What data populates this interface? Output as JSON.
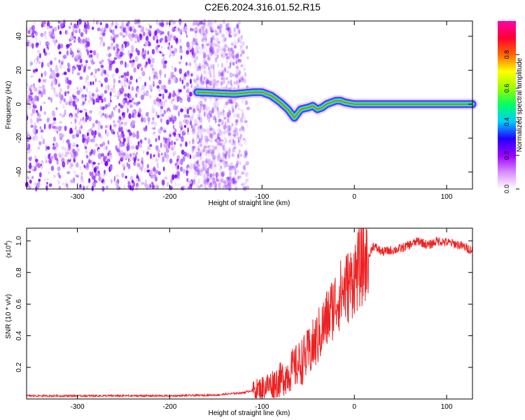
{
  "figure_title": "C2E6.2024.316.01.52.R15",
  "chart_data": [
    {
      "type": "heatmap",
      "title": "C2E6.2024.316.01.52.R15",
      "xlabel": "Height of straight line (km)",
      "ylabel": "Frequency (Hz)",
      "xlim": [
        -355,
        128
      ],
      "ylim": [
        -50,
        49
      ],
      "x_ticks": [
        -300,
        -200,
        -100,
        0,
        100
      ],
      "y_ticks": [
        -40,
        -20,
        0,
        20,
        40
      ],
      "grid": false,
      "colorbar": {
        "label": "Normalized spectral amplitude",
        "range": [
          0,
          1
        ],
        "ticks": [
          "0.0",
          "0.2",
          "0.4",
          "0.6",
          "0.8"
        ],
        "colors": [
          "#ffffff",
          "#d98cff",
          "#9900ff",
          "#2200ff",
          "#00ccff",
          "#00ff66",
          "#99ff00",
          "#ffff00",
          "#ff6600",
          "#ff0033",
          "#ff00aa"
        ]
      },
      "noise_region_x": [
        -355,
        -125
      ],
      "signal_ridge": {
        "x": [
          -170,
          -150,
          -130,
          -110,
          -100,
          -90,
          -80,
          -72,
          -65,
          -58,
          -50,
          -45,
          -40,
          -35,
          -30,
          -25,
          -20,
          -15,
          -10,
          0,
          20,
          50,
          80,
          100,
          128
        ],
        "y": [
          7,
          6.5,
          6,
          7,
          7,
          5,
          1,
          -3,
          -8,
          -3,
          -2,
          -1,
          -3,
          -2,
          0,
          1,
          2,
          2,
          1,
          0,
          0,
          0,
          0,
          0,
          0
        ]
      }
    },
    {
      "type": "line",
      "xlabel": "Height of straight line (km)",
      "ylabel": "SNR (10 * v/v)",
      "y_scale_label": "(x10",
      "y_scale_exponent": "4",
      "xlim": [
        -355,
        128
      ],
      "ylim": [
        0,
        1.08
      ],
      "x_ticks": [
        -300,
        -200,
        -100,
        0,
        100
      ],
      "y_ticks": [
        0.2,
        0.4,
        0.6,
        0.8,
        1.0
      ],
      "line_color": "#ee2222",
      "series": [
        {
          "x": [
            -355,
            -300,
            -250,
            -200,
            -150,
            -120,
            -100,
            -80,
            -60,
            -50,
            -40,
            -30,
            -20,
            -10,
            -5,
            0,
            5,
            10,
            15,
            20,
            30,
            50,
            70,
            80,
            90,
            100,
            110,
            120,
            128
          ],
          "values": [
            0.02,
            0.02,
            0.02,
            0.02,
            0.025,
            0.04,
            0.07,
            0.12,
            0.22,
            0.28,
            0.38,
            0.5,
            0.62,
            0.7,
            0.72,
            0.78,
            0.82,
            0.86,
            0.88,
            0.97,
            0.93,
            0.95,
            1.0,
            0.97,
            1.0,
            0.99,
            0.98,
            0.96,
            0.94
          ]
        }
      ]
    }
  ]
}
